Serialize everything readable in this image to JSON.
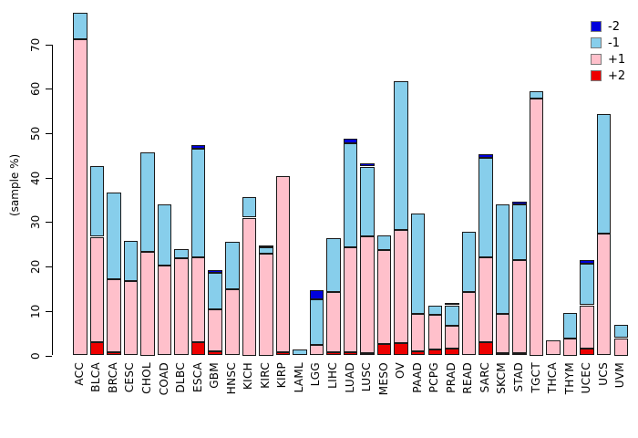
{
  "figure": {
    "background": "#FFFFFF",
    "axis_color": "#000000"
  },
  "chart_data": {
    "type": "bar",
    "stacked": true,
    "title": "",
    "xlabel": "",
    "ylabel": "(sample %)",
    "grid": false,
    "legend_position": "top-right",
    "y_ticks": [
      0,
      10,
      20,
      30,
      40,
      50,
      60,
      70
    ],
    "ylim": [
      0,
      78
    ],
    "stack_order_bottom_to_top": [
      "+2",
      "+1",
      "-1",
      "-2"
    ],
    "categories": [
      "ACC",
      "BLCA",
      "BRCA",
      "CESC",
      "CHOL",
      "COAD",
      "DLBC",
      "ESCA",
      "GBM",
      "HNSC",
      "KICH",
      "KIRC",
      "KIRP",
      "LAML",
      "LGG",
      "LIHC",
      "LUAD",
      "LUSC",
      "MESO",
      "OV",
      "PAAD",
      "PCPG",
      "PRAD",
      "READ",
      "SARC",
      "SKCM",
      "STAD",
      "TGCT",
      "THCA",
      "THYM",
      "UCEC",
      "UCS",
      "UVM"
    ],
    "series": [
      {
        "name": "+2",
        "color": "#EE0000",
        "values": [
          0,
          3.0,
          0.8,
          0,
          0,
          0,
          0,
          3.0,
          0.9,
          0,
          0,
          0,
          0.8,
          0,
          0,
          0.7,
          0.8,
          0.6,
          2.5,
          2.7,
          0.9,
          1.4,
          1.6,
          0,
          2.9,
          0.5,
          0.5,
          0,
          0,
          0,
          1.5,
          0,
          0
        ]
      },
      {
        "name": "+1",
        "color": "#FFC0CB",
        "values": [
          71.2,
          23.7,
          16.3,
          16.8,
          23.3,
          20.3,
          21.9,
          19.0,
          9.4,
          14.9,
          31.0,
          22.9,
          39.6,
          0,
          2.4,
          13.6,
          23.5,
          26.3,
          21.3,
          25.5,
          8.5,
          7.8,
          5.0,
          14.3,
          19.1,
          8.9,
          20.9,
          57.8,
          3.4,
          3.8,
          9.8,
          27.5,
          3.9
        ]
      },
      {
        "name": "-1",
        "color": "#87CEEB",
        "values": [
          6.0,
          16.0,
          19.5,
          8.9,
          22.3,
          13.6,
          2.1,
          24.5,
          8.3,
          10.6,
          4.7,
          1.4,
          0,
          1.4,
          10.2,
          12.0,
          23.5,
          15.6,
          3.3,
          33.5,
          22.6,
          1.9,
          4.7,
          13.6,
          22.4,
          24.5,
          12.5,
          1.6,
          0,
          5.8,
          9.4,
          26.9,
          2.9
        ]
      },
      {
        "name": "-2",
        "color": "#0000DC",
        "values": [
          0,
          0,
          0,
          0,
          0,
          0,
          0,
          0.8,
          0.7,
          0,
          0,
          0.5,
          0,
          0,
          2.1,
          0,
          0.9,
          0.8,
          0,
          0,
          0,
          0,
          0.5,
          0,
          0.8,
          0,
          0.7,
          0,
          0,
          0,
          0.7,
          0,
          0
        ]
      }
    ],
    "legend": {
      "items": [
        {
          "label": "-2",
          "color": "#0000DC"
        },
        {
          "label": "-1",
          "color": "#87CEEB"
        },
        {
          "label": "+1",
          "color": "#FFC0CB"
        },
        {
          "label": "+2",
          "color": "#EE0000"
        }
      ]
    }
  }
}
